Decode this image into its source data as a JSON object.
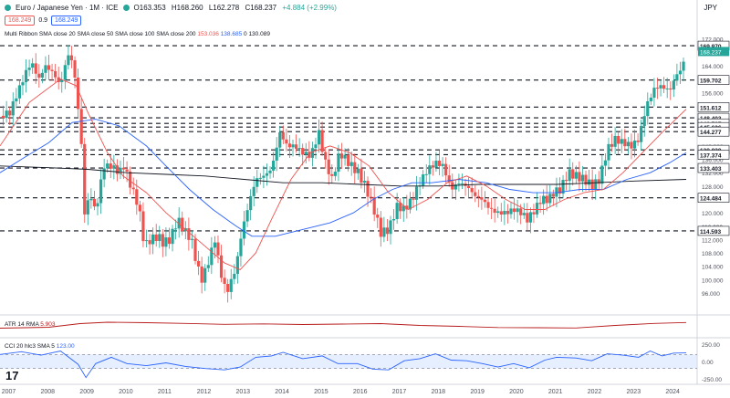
{
  "header": {
    "title": "Euro / Japanese Yen · 1M · ICE",
    "open": "O163.353",
    "high": "H168.260",
    "low": "L162.278",
    "close": "C168.237",
    "change": "+4.884 (+2.99%)",
    "sell_price": "168.249",
    "spread": "0.9",
    "buy_price": "168.249",
    "currency": "JPY"
  },
  "indicators": {
    "ma_legend": {
      "prefix": "Multi Ribbon  SMA close 20  SMA close 50  SMA close 100  SMA close 200",
      "v1": "153.036",
      "v2": "138.685",
      "v3": "0",
      "v4": "130.089"
    },
    "atr_legend": {
      "label": "ATR 14 RMA",
      "value": "5.903"
    },
    "cci_legend": {
      "label": "CCI 20 hlc3 SMA 5",
      "value": "123.00"
    }
  },
  "colors": {
    "up": "#26a69a",
    "down": "#ef5350",
    "sma20": "#ef5350",
    "sma50": "#2962ff",
    "sma200": "#131722",
    "atr": "#b71c1c",
    "cci": "#2962ff",
    "cci_band": "#d6e4ff"
  },
  "chart_data": {
    "type": "candlestick",
    "timeframe": "monthly",
    "ylim": [
      90,
      176
    ],
    "y_ticks": [
      "172.000",
      "168.000",
      "164.000",
      "160.000",
      "156.000",
      "152.000",
      "148.000",
      "144.000",
      "140.000",
      "136.000",
      "132.000",
      "128.000",
      "124.000",
      "120.000",
      "116.000",
      "112.000",
      "108.000",
      "104.000",
      "100.000",
      "96.000"
    ],
    "x_ticks": [
      "2007",
      "2008",
      "2009",
      "2010",
      "2011",
      "2012",
      "2013",
      "2014",
      "2015",
      "2016",
      "2017",
      "2018",
      "2019",
      "2020",
      "2021",
      "2022",
      "2023",
      "2024"
    ],
    "levels": [
      "169.970",
      "159.702",
      "151.612",
      "148.403",
      "146.727",
      "145.636",
      "144.277",
      "138.830",
      "137.374",
      "133.403",
      "124.484",
      "114.593"
    ],
    "last_price": "168.237",
    "close_path": [
      [
        2006.75,
        149
      ],
      [
        2007.0,
        150
      ],
      [
        2007.2,
        156
      ],
      [
        2007.45,
        163
      ],
      [
        2007.55,
        165
      ],
      [
        2007.75,
        160
      ],
      [
        2007.9,
        164
      ],
      [
        2008.1,
        162
      ],
      [
        2008.3,
        158
      ],
      [
        2008.45,
        166
      ],
      [
        2008.55,
        168
      ],
      [
        2008.7,
        158
      ],
      [
        2008.85,
        138
      ],
      [
        2008.92,
        119
      ],
      [
        2009.05,
        126
      ],
      [
        2009.2,
        120
      ],
      [
        2009.4,
        134
      ],
      [
        2009.6,
        134
      ],
      [
        2009.8,
        132
      ],
      [
        2009.92,
        134
      ],
      [
        2010.1,
        128
      ],
      [
        2010.3,
        122
      ],
      [
        2010.45,
        110
      ],
      [
        2010.6,
        112
      ],
      [
        2010.8,
        113
      ],
      [
        2010.92,
        111
      ],
      [
        2011.1,
        112
      ],
      [
        2011.3,
        118
      ],
      [
        2011.45,
        115
      ],
      [
        2011.65,
        112
      ],
      [
        2011.8,
        104
      ],
      [
        2011.92,
        100
      ],
      [
        2012.05,
        104
      ],
      [
        2012.25,
        112
      ],
      [
        2012.4,
        102
      ],
      [
        2012.55,
        96
      ],
      [
        2012.65,
        99
      ],
      [
        2012.8,
        104
      ],
      [
        2012.92,
        113
      ],
      [
        2013.1,
        122
      ],
      [
        2013.3,
        130
      ],
      [
        2013.5,
        131
      ],
      [
        2013.7,
        133
      ],
      [
        2013.92,
        144
      ],
      [
        2014.1,
        140
      ],
      [
        2014.3,
        140
      ],
      [
        2014.5,
        138
      ],
      [
        2014.7,
        137
      ],
      [
        2014.92,
        144
      ],
      [
        2015.05,
        136
      ],
      [
        2015.25,
        130
      ],
      [
        2015.45,
        138
      ],
      [
        2015.6,
        136
      ],
      [
        2015.75,
        134
      ],
      [
        2015.92,
        132
      ],
      [
        2016.1,
        128
      ],
      [
        2016.3,
        122
      ],
      [
        2016.5,
        114
      ],
      [
        2016.7,
        115
      ],
      [
        2016.92,
        122
      ],
      [
        2017.1,
        121
      ],
      [
        2017.3,
        124
      ],
      [
        2017.5,
        129
      ],
      [
        2017.7,
        133
      ],
      [
        2017.92,
        135
      ],
      [
        2018.1,
        134
      ],
      [
        2018.3,
        127
      ],
      [
        2018.5,
        129
      ],
      [
        2018.7,
        128
      ],
      [
        2018.92,
        125
      ],
      [
        2019.1,
        124
      ],
      [
        2019.3,
        121
      ],
      [
        2019.5,
        120
      ],
      [
        2019.7,
        120
      ],
      [
        2019.92,
        121
      ],
      [
        2020.1,
        120
      ],
      [
        2020.25,
        118
      ],
      [
        2020.45,
        121
      ],
      [
        2020.6,
        124
      ],
      [
        2020.8,
        124
      ],
      [
        2020.92,
        126
      ],
      [
        2021.1,
        127
      ],
      [
        2021.3,
        132
      ],
      [
        2021.5,
        131
      ],
      [
        2021.7,
        130
      ],
      [
        2021.92,
        128
      ],
      [
        2022.1,
        130
      ],
      [
        2022.3,
        139
      ],
      [
        2022.5,
        142
      ],
      [
        2022.7,
        141
      ],
      [
        2022.92,
        140
      ],
      [
        2023.1,
        142
      ],
      [
        2023.3,
        152
      ],
      [
        2023.5,
        157
      ],
      [
        2023.65,
        158
      ],
      [
        2023.8,
        157
      ],
      [
        2023.92,
        157
      ],
      [
        2024.05,
        161
      ],
      [
        2024.2,
        163
      ],
      [
        2024.32,
        168
      ]
    ],
    "sma20_path": [
      [
        2006.75,
        140
      ],
      [
        2007.5,
        153
      ],
      [
        2008.3,
        160
      ],
      [
        2008.7,
        158
      ],
      [
        2009.0,
        150
      ],
      [
        2009.5,
        138
      ],
      [
        2009.9,
        131
      ],
      [
        2010.5,
        126
      ],
      [
        2011.0,
        120
      ],
      [
        2011.5,
        115
      ],
      [
        2012.0,
        110
      ],
      [
        2012.5,
        105
      ],
      [
        2012.9,
        103
      ],
      [
        2013.3,
        108
      ],
      [
        2013.7,
        118
      ],
      [
        2014.2,
        130
      ],
      [
        2014.7,
        138
      ],
      [
        2015.2,
        140
      ],
      [
        2015.7,
        138
      ],
      [
        2016.2,
        134
      ],
      [
        2016.7,
        126
      ],
      [
        2017.2,
        121
      ],
      [
        2017.7,
        124
      ],
      [
        2018.2,
        129
      ],
      [
        2018.7,
        131
      ],
      [
        2019.2,
        128
      ],
      [
        2019.7,
        124
      ],
      [
        2020.2,
        121
      ],
      [
        2020.7,
        121
      ],
      [
        2021.2,
        124
      ],
      [
        2021.7,
        126
      ],
      [
        2022.2,
        127
      ],
      [
        2022.7,
        132
      ],
      [
        2023.2,
        138
      ],
      [
        2023.7,
        144
      ],
      [
        2024.32,
        151
      ]
    ],
    "sma50_path": [
      [
        2006.75,
        132
      ],
      [
        2007.3,
        136
      ],
      [
        2008.0,
        141
      ],
      [
        2008.6,
        147
      ],
      [
        2009.2,
        148
      ],
      [
        2009.8,
        146
      ],
      [
        2010.5,
        140
      ],
      [
        2011.0,
        134
      ],
      [
        2011.6,
        127
      ],
      [
        2012.2,
        121
      ],
      [
        2012.8,
        116
      ],
      [
        2013.2,
        113
      ],
      [
        2013.8,
        113
      ],
      [
        2014.5,
        115
      ],
      [
        2015.2,
        117
      ],
      [
        2015.8,
        120
      ],
      [
        2016.3,
        124
      ],
      [
        2016.8,
        127
      ],
      [
        2017.3,
        129
      ],
      [
        2017.8,
        129
      ],
      [
        2018.5,
        130
      ],
      [
        2019.2,
        129
      ],
      [
        2019.8,
        127
      ],
      [
        2020.4,
        126
      ],
      [
        2021.0,
        126
      ],
      [
        2021.6,
        127
      ],
      [
        2022.2,
        127
      ],
      [
        2022.8,
        130
      ],
      [
        2023.4,
        132
      ],
      [
        2023.9,
        135
      ],
      [
        2024.32,
        138
      ]
    ],
    "sma200_path": [
      [
        2006.75,
        134
      ],
      [
        2008.0,
        133.5
      ],
      [
        2009.0,
        133
      ],
      [
        2010.0,
        132
      ],
      [
        2011.0,
        131.5
      ],
      [
        2012.0,
        131
      ],
      [
        2013.0,
        130
      ],
      [
        2014.0,
        129
      ],
      [
        2015.0,
        129
      ],
      [
        2016.0,
        128.5
      ],
      [
        2017.0,
        128
      ],
      [
        2018.0,
        128
      ],
      [
        2019.0,
        128.5
      ],
      [
        2020.0,
        128.5
      ],
      [
        2021.0,
        128.5
      ],
      [
        2022.0,
        129
      ],
      [
        2023.0,
        129.5
      ],
      [
        2024.32,
        130
      ]
    ],
    "atr_path": [
      [
        2006.75,
        3.4
      ],
      [
        2008.0,
        3.8
      ],
      [
        2008.8,
        5.4
      ],
      [
        2009.5,
        6.0
      ],
      [
        2010.5,
        5.8
      ],
      [
        2011.5,
        5.5
      ],
      [
        2012.5,
        5.1
      ],
      [
        2013.5,
        5.3
      ],
      [
        2014.5,
        5.0
      ],
      [
        2015.5,
        5.2
      ],
      [
        2016.5,
        5.4
      ],
      [
        2017.5,
        4.6
      ],
      [
        2018.5,
        4.2
      ],
      [
        2019.5,
        3.7
      ],
      [
        2020.5,
        3.6
      ],
      [
        2021.5,
        3.5
      ],
      [
        2022.5,
        4.6
      ],
      [
        2023.5,
        5.5
      ],
      [
        2024.32,
        5.9
      ]
    ],
    "atr_ylim": [
      0,
      8
    ],
    "cci_ylim": [
      -300,
      300
    ],
    "cci_ticks": [
      "250.00",
      "0.00",
      "-250.00"
    ],
    "cci_path": [
      [
        2006.75,
        100
      ],
      [
        2007.3,
        140
      ],
      [
        2007.8,
        90
      ],
      [
        2008.3,
        150
      ],
      [
        2008.75,
        -40
      ],
      [
        2008.95,
        -230
      ],
      [
        2009.2,
        -30
      ],
      [
        2009.6,
        60
      ],
      [
        2010.0,
        -30
      ],
      [
        2010.5,
        -60
      ],
      [
        2011.0,
        -20
      ],
      [
        2011.5,
        -70
      ],
      [
        2012.0,
        -100
      ],
      [
        2012.5,
        -120
      ],
      [
        2012.9,
        -80
      ],
      [
        2013.3,
        60
      ],
      [
        2013.7,
        80
      ],
      [
        2014.0,
        130
      ],
      [
        2014.5,
        40
      ],
      [
        2015.0,
        80
      ],
      [
        2015.4,
        -30
      ],
      [
        2015.9,
        -30
      ],
      [
        2016.3,
        -110
      ],
      [
        2016.7,
        -120
      ],
      [
        2017.1,
        10
      ],
      [
        2017.5,
        40
      ],
      [
        2017.9,
        110
      ],
      [
        2018.3,
        20
      ],
      [
        2018.7,
        10
      ],
      [
        2019.1,
        -30
      ],
      [
        2019.5,
        -80
      ],
      [
        2019.9,
        -30
      ],
      [
        2020.3,
        -90
      ],
      [
        2020.7,
        20
      ],
      [
        2021.0,
        60
      ],
      [
        2021.5,
        50
      ],
      [
        2021.9,
        10
      ],
      [
        2022.3,
        110
      ],
      [
        2022.7,
        90
      ],
      [
        2023.1,
        60
      ],
      [
        2023.4,
        150
      ],
      [
        2023.7,
        80
      ],
      [
        2024.0,
        120
      ],
      [
        2024.32,
        123
      ]
    ]
  }
}
